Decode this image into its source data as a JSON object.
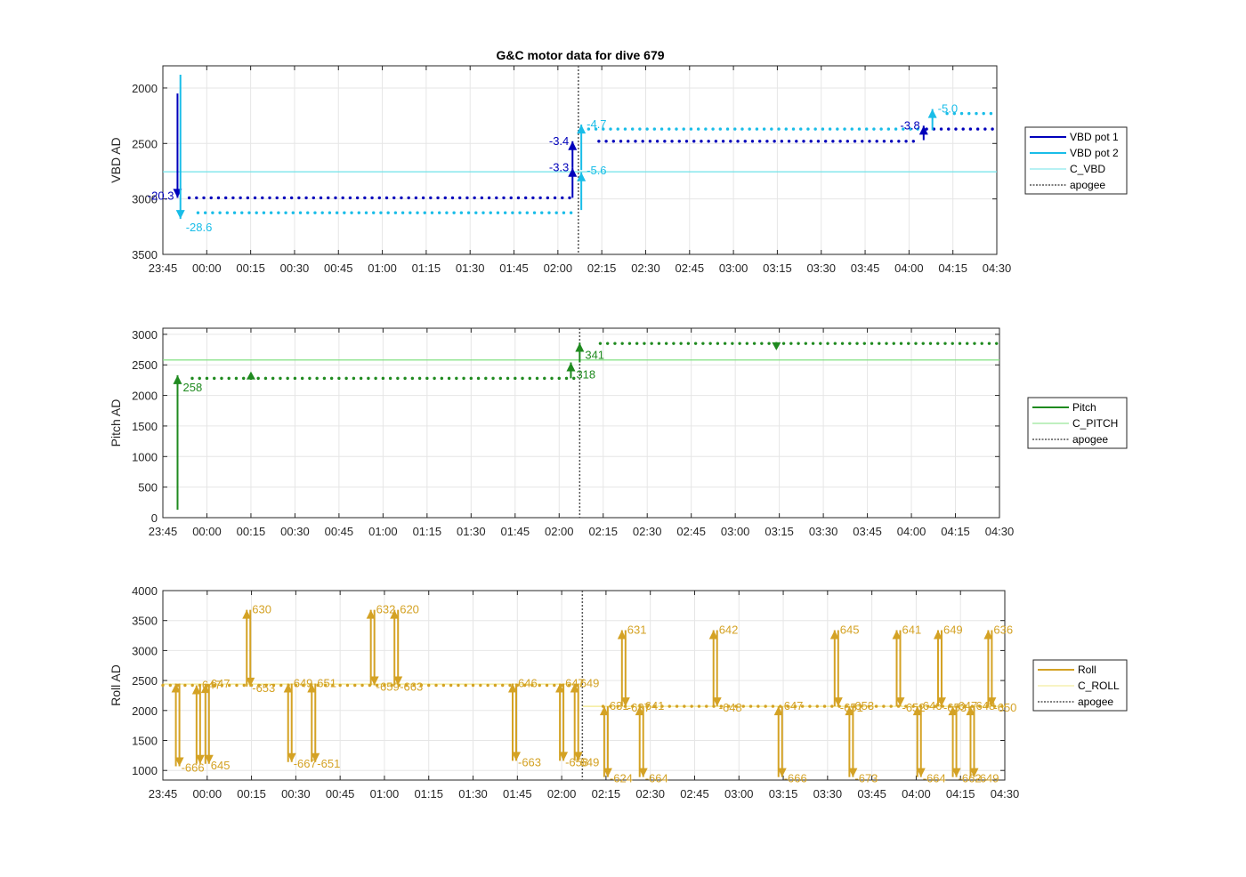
{
  "figure": {
    "title": "G&C motor data for dive 679"
  },
  "colors": {
    "vbd1": "#0000bb",
    "vbd2": "#19bde8",
    "c_vbd": "#6fe3e8",
    "pitch": "#1f8a1f",
    "c_pitch": "#7fe07f",
    "roll": "#d4a224",
    "c_roll": "#f2e88a",
    "apogee": "#555555"
  },
  "x_ticks": [
    "23:45",
    "00:00",
    "00:15",
    "00:30",
    "00:45",
    "01:00",
    "01:15",
    "01:30",
    "01:45",
    "02:00",
    "02:15",
    "02:30",
    "02:45",
    "03:00",
    "03:15",
    "03:30",
    "03:45",
    "04:00",
    "04:15",
    "04:30"
  ],
  "x_range_min": [
    -15,
    270
  ],
  "chart_data": [
    {
      "type": "line",
      "name": "vbd",
      "ylabel": "VBD AD",
      "ylim": [
        3500,
        1800
      ],
      "y_reversed": true,
      "yticks": [
        2000,
        2500,
        3000,
        3500
      ],
      "grid": true,
      "legend": [
        "VBD pot 1",
        "VBD pot 2",
        "C_VBD",
        "apogee"
      ],
      "legend_position": "outside-right",
      "apogee_min": 127,
      "c_value": 2755,
      "series": [
        {
          "name": "VBD pot 1",
          "segments": [
            {
              "x0": -6,
              "x1": 125,
              "y": 2990
            },
            {
              "x0": 134,
              "x1": 243,
              "y": 2480
            },
            {
              "x0": 246,
              "x1": 270,
              "y": 2370
            }
          ]
        },
        {
          "name": "VBD pot 2",
          "segments": [
            {
              "x0": -3,
              "x1": 125,
              "y": 3125
            },
            {
              "x0": 128,
              "x1": 243,
              "y": 2370
            },
            {
              "x0": 253,
              "x1": 270,
              "y": 2230
            }
          ]
        }
      ],
      "moves": [
        {
          "series": "VBD pot 1",
          "x": -10,
          "from": 2050,
          "to": 2990,
          "label": "-20.3"
        },
        {
          "series": "VBD pot 2",
          "x": -9,
          "from": 1880,
          "to": 3180,
          "label": "-28.6"
        },
        {
          "series": "VBD pot 1",
          "x": 125,
          "from": 2990,
          "to": 2720,
          "label": "-3.3"
        },
        {
          "series": "VBD pot 1",
          "x": 125,
          "from": 2720,
          "to": 2480,
          "label": "-3.4"
        },
        {
          "series": "VBD pot 2",
          "x": 128,
          "from": 3100,
          "to": 2760,
          "label": "-5.6"
        },
        {
          "series": "VBD pot 2",
          "x": 128,
          "from": 2740,
          "to": 2330,
          "label": "-4.7"
        },
        {
          "series": "VBD pot 1",
          "x": 245,
          "from": 2470,
          "to": 2340,
          "label": "-3.8"
        },
        {
          "series": "VBD pot 2",
          "x": 248,
          "from": 2380,
          "to": 2190,
          "label": "-5.0"
        }
      ]
    },
    {
      "type": "line",
      "name": "pitch",
      "ylabel": "Pitch AD",
      "ylim": [
        0,
        3100
      ],
      "yticks": [
        0,
        500,
        1000,
        1500,
        2000,
        2500,
        3000
      ],
      "grid": true,
      "legend": [
        "Pitch",
        "C_PITCH",
        "apogee"
      ],
      "legend_position": "outside-right",
      "apogee_min": 127,
      "c_value": 2580,
      "series": [
        {
          "name": "Pitch",
          "segments": [
            {
              "x0": -5,
              "x1": 125,
              "y": 2280
            },
            {
              "x0": 134,
              "x1": 270,
              "y": 2850
            }
          ]
        }
      ],
      "moves": [
        {
          "series": "Pitch",
          "x": -10,
          "from": 130,
          "to": 2330,
          "label": "258"
        },
        {
          "series": "Pitch",
          "x": 124,
          "from": 2280,
          "to": 2540,
          "label": "318"
        },
        {
          "series": "Pitch",
          "x": 127,
          "from": 2540,
          "to": 2860,
          "label": "341"
        }
      ],
      "markers": [
        {
          "x": 15,
          "y": 2320,
          "dir": "up"
        },
        {
          "x": 194,
          "y": 2810,
          "dir": "down"
        }
      ]
    },
    {
      "type": "line",
      "name": "roll",
      "ylabel": "Roll AD",
      "ylim": [
        840,
        4000
      ],
      "yticks": [
        1000,
        1500,
        2000,
        2500,
        3000,
        3500,
        4000
      ],
      "grid": true,
      "legend": [
        "Roll",
        "C_ROLL",
        "apogee"
      ],
      "legend_position": "outside-right",
      "apogee_min": 127,
      "c_segments": [
        {
          "x0": -15,
          "x1": 127,
          "y": 2440
        },
        {
          "x0": 127,
          "x1": 270,
          "y": 2070
        }
      ],
      "series": [
        {
          "name": "Roll",
          "segments": [
            {
              "x0": -15,
              "x1": 125,
              "y": 2420
            },
            {
              "x0": 134,
              "x1": 270,
              "y": 2070
            }
          ]
        }
      ],
      "moves": [
        {
          "x": -10,
          "hi": 2450,
          "lo": 1070,
          "top": "",
          "bottom": "-666"
        },
        {
          "x": -3,
          "hi": 2420,
          "lo": 1110,
          "top": "647",
          "bottom": ""
        },
        {
          "x": 0,
          "hi": 2440,
          "lo": 1110,
          "top": "647",
          "bottom": "645"
        },
        {
          "x": 14,
          "hi": 3680,
          "lo": 2400,
          "top": "630",
          "bottom": "-653"
        },
        {
          "x": 28,
          "hi": 2450,
          "lo": 1140,
          "top": "649",
          "bottom": "-667"
        },
        {
          "x": 36,
          "hi": 2450,
          "lo": 1140,
          "top": "651",
          "bottom": "-651"
        },
        {
          "x": 56,
          "hi": 3680,
          "lo": 2420,
          "top": "632",
          "bottom": "-659"
        },
        {
          "x": 64,
          "hi": 3680,
          "lo": 2420,
          "top": "620",
          "bottom": "-663"
        },
        {
          "x": 104,
          "hi": 2450,
          "lo": 1160,
          "top": "646",
          "bottom": "-663"
        },
        {
          "x": 120,
          "hi": 2450,
          "lo": 1160,
          "top": "647",
          "bottom": "-658"
        },
        {
          "x": 125,
          "hi": 2450,
          "lo": 1160,
          "top": "649",
          "bottom": "649"
        },
        {
          "x": 135,
          "hi": 2070,
          "lo": 890,
          "top": "631",
          "bottom": "-624"
        },
        {
          "x": 141,
          "hi": 3340,
          "lo": 2070,
          "top": "631",
          "bottom": "-637"
        },
        {
          "x": 147,
          "hi": 2070,
          "lo": 890,
          "top": "641",
          "bottom": "-664"
        },
        {
          "x": 172,
          "hi": 3340,
          "lo": 2070,
          "top": "642",
          "bottom": "-648"
        },
        {
          "x": 194,
          "hi": 2070,
          "lo": 890,
          "top": "647",
          "bottom": "-666"
        },
        {
          "x": 213,
          "hi": 3340,
          "lo": 2070,
          "top": "645",
          "bottom": "-651"
        },
        {
          "x": 218,
          "hi": 2070,
          "lo": 890,
          "top": "653",
          "bottom": "-673"
        },
        {
          "x": 234,
          "hi": 3340,
          "lo": 2070,
          "top": "641",
          "bottom": "-652"
        },
        {
          "x": 241,
          "hi": 2070,
          "lo": 890,
          "top": "646",
          "bottom": "-664"
        },
        {
          "x": 248,
          "hi": 3340,
          "lo": 2070,
          "top": "649",
          "bottom": "-653"
        },
        {
          "x": 253,
          "hi": 2070,
          "lo": 890,
          "top": "647",
          "bottom": "-662"
        },
        {
          "x": 259,
          "hi": 2070,
          "lo": 890,
          "top": "648",
          "bottom": "-649"
        },
        {
          "x": 265,
          "hi": 3340,
          "lo": 2070,
          "top": "636",
          "bottom": "-650"
        }
      ]
    }
  ]
}
